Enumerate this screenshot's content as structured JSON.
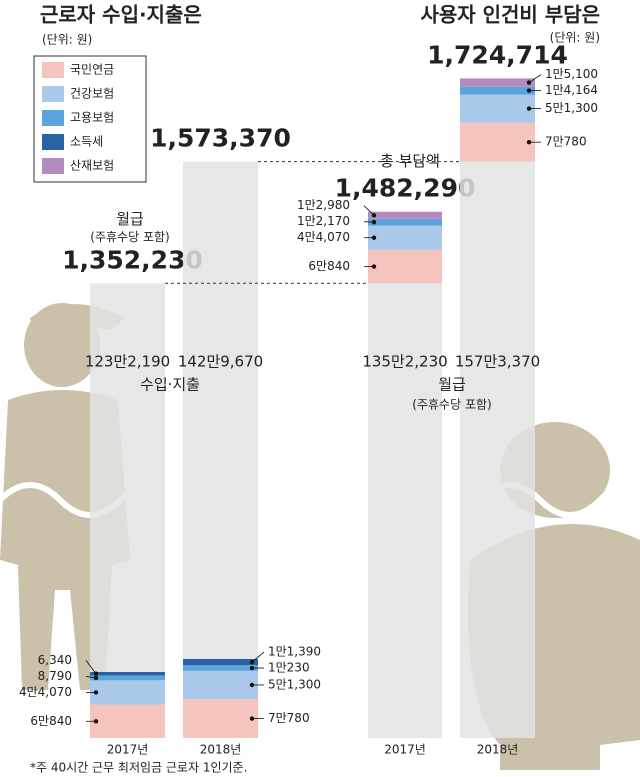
{
  "chart_data": [
    {
      "type": "bar",
      "stacked": true,
      "title": "근로자 수입·지출은",
      "subtitle": "(단위: 원)",
      "categories": [
        "2017년",
        "2018년"
      ],
      "series": [
        {
          "name": "국민연금",
          "color": "#f6c4be",
          "values": [
            60840,
            70780
          ],
          "value_labels": [
            "6만840",
            "7만780"
          ]
        },
        {
          "name": "건강보험",
          "color": "#a9c8ea",
          "values": [
            44070,
            51300
          ],
          "value_labels": [
            "4만4,070",
            "5만1,300"
          ]
        },
        {
          "name": "고용보험",
          "color": "#5aa3db",
          "values": [
            8790,
            10230
          ],
          "value_labels": [
            "8,790",
            "1만230"
          ]
        },
        {
          "name": "소득세",
          "color": "#2a62a6",
          "values": [
            6340,
            11390
          ],
          "value_labels": [
            "6,340",
            "1만1,390"
          ]
        },
        {
          "name": "수입·지출",
          "color": "#e3e3e3",
          "values": [
            1232190,
            1429670
          ],
          "value_labels": [
            "123만2,190",
            "142만9,670"
          ]
        }
      ],
      "totals": {
        "label": "월급",
        "note": "(주휴수당 포함)",
        "values": [
          1352230,
          1573370
        ],
        "value_labels": [
          "1,352,230",
          "1,573,370"
        ]
      }
    },
    {
      "type": "bar",
      "stacked": true,
      "title": "사용자 인건비 부담은",
      "subtitle": "(단위: 원)",
      "categories": [
        "2017년",
        "2018년"
      ],
      "series": [
        {
          "name": "월급",
          "note": "(주휴수당 포함)",
          "color": "#e3e3e3",
          "values": [
            1352230,
            1573370
          ],
          "value_labels": [
            "135만2,230",
            "157만3,370"
          ]
        },
        {
          "name": "국민연금",
          "color": "#f6c4be",
          "values": [
            60840,
            70780
          ],
          "value_labels": [
            "6만840",
            "7만780"
          ]
        },
        {
          "name": "건강보험",
          "color": "#a9c8ea",
          "values": [
            44070,
            51300
          ],
          "value_labels": [
            "4만4,070",
            "5만1,300"
          ]
        },
        {
          "name": "고용보험",
          "color": "#5aa3db",
          "values": [
            12170,
            14164
          ],
          "value_labels": [
            "1만2,170",
            "1만4,164"
          ]
        },
        {
          "name": "산재보험",
          "color": "#b58ac0",
          "values": [
            12980,
            15100
          ],
          "value_labels": [
            "1만2,980",
            "1만5,100"
          ]
        }
      ],
      "totals": {
        "label": "총 부담액",
        "values": [
          1482290,
          1724714
        ],
        "value_labels": [
          "1,482,290",
          "1,724,714"
        ]
      }
    }
  ],
  "legend": [
    {
      "name": "국민연금",
      "color": "#f6c4be"
    },
    {
      "name": "건강보험",
      "color": "#a9c8ea"
    },
    {
      "name": "고용보험",
      "color": "#5aa3db"
    },
    {
      "name": "소득세",
      "color": "#2a62a6"
    },
    {
      "name": "산재보험",
      "color": "#b58ac0"
    }
  ],
  "footnote": "*주 40시간 근무 최저임금 근로자 1인기준."
}
